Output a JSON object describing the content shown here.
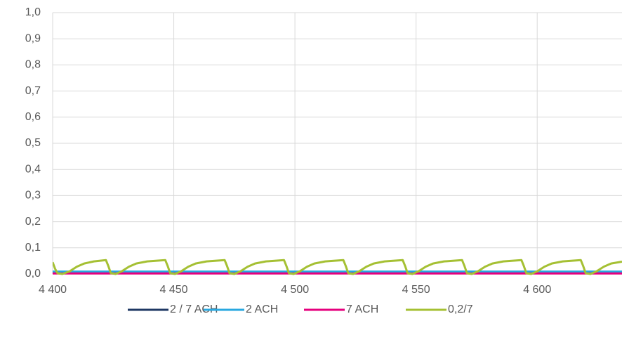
{
  "chart_data": {
    "type": "line",
    "x": [
      4400,
      4401,
      4402,
      4404,
      4407,
      4410,
      4413,
      4417,
      4422,
      4423,
      4424,
      4426,
      4428.5,
      4431.5,
      4434.5,
      4439,
      4446.5,
      4447.5,
      4448.5,
      4450.5,
      4453,
      4456,
      4459,
      4463.5,
      4471,
      4472,
      4473,
      4475,
      4477.5,
      4480.5,
      4483.5,
      4488,
      4495.5,
      4496.5,
      4497.5,
      4499.5,
      4502,
      4505,
      4508,
      4512.5,
      4520,
      4521,
      4522,
      4524,
      4526.5,
      4529.5,
      4532.5,
      4537,
      4544.5,
      4545.5,
      4546.5,
      4548.5,
      4551,
      4554,
      4557,
      4561.5,
      4569,
      4570,
      4571,
      4573,
      4575.5,
      4578.5,
      4581.5,
      4586,
      4593.5,
      4594.5,
      4595.5,
      4597.5,
      4600,
      4603,
      4606,
      4610.5,
      4618,
      4619,
      4620,
      4622,
      4624.5,
      4627.5,
      4630.5,
      4635
    ],
    "series": [
      {
        "name": "2 / 7 ACH",
        "color": "#1f3864",
        "values": [
          0.005,
          0.005,
          0.005,
          0.005,
          0.005,
          0.005,
          0.005,
          0.005,
          0.005,
          0.005,
          0.005,
          0.005,
          0.005,
          0.005,
          0.005,
          0.005,
          0.005,
          0.005,
          0.005,
          0.005,
          0.005,
          0.005,
          0.005,
          0.005,
          0.005,
          0.005,
          0.005,
          0.005,
          0.005,
          0.005,
          0.005,
          0.005,
          0.005,
          0.005,
          0.005,
          0.005,
          0.005,
          0.005,
          0.005,
          0.005,
          0.005,
          0.005,
          0.005,
          0.005,
          0.005,
          0.005,
          0.005,
          0.005,
          0.005,
          0.005,
          0.005,
          0.005,
          0.005,
          0.005,
          0.005,
          0.005,
          0.005,
          0.005,
          0.005,
          0.005,
          0.005,
          0.005,
          0.005,
          0.005,
          0.005,
          0.005,
          0.005,
          0.005,
          0.005,
          0.005,
          0.005,
          0.005,
          0.005,
          0.005,
          0.005,
          0.005,
          0.005,
          0.005,
          0.005,
          0.005
        ]
      },
      {
        "name": "2 ACH",
        "color": "#29a8e0",
        "values": [
          0.009,
          0.009,
          0.009,
          0.009,
          0.009,
          0.009,
          0.009,
          0.009,
          0.009,
          0.009,
          0.009,
          0.009,
          0.009,
          0.009,
          0.009,
          0.009,
          0.009,
          0.009,
          0.009,
          0.009,
          0.009,
          0.009,
          0.009,
          0.009,
          0.009,
          0.009,
          0.009,
          0.009,
          0.009,
          0.009,
          0.009,
          0.009,
          0.009,
          0.009,
          0.009,
          0.009,
          0.009,
          0.009,
          0.009,
          0.009,
          0.009,
          0.009,
          0.009,
          0.009,
          0.009,
          0.009,
          0.009,
          0.009,
          0.009,
          0.009,
          0.009,
          0.009,
          0.009,
          0.009,
          0.009,
          0.009,
          0.009,
          0.009,
          0.009,
          0.009,
          0.009,
          0.009,
          0.009,
          0.009,
          0.009,
          0.009,
          0.009,
          0.009,
          0.009,
          0.009,
          0.009,
          0.009,
          0.009,
          0.009,
          0.009,
          0.009,
          0.009,
          0.009,
          0.009,
          0.009
        ]
      },
      {
        "name": "7 ACH",
        "color": "#e6007e",
        "values": [
          0.002,
          0.002,
          0.002,
          0.002,
          0.002,
          0.002,
          0.002,
          0.002,
          0.002,
          0.002,
          0.002,
          0.002,
          0.002,
          0.002,
          0.002,
          0.002,
          0.002,
          0.002,
          0.002,
          0.002,
          0.002,
          0.002,
          0.002,
          0.002,
          0.002,
          0.002,
          0.002,
          0.002,
          0.002,
          0.002,
          0.002,
          0.002,
          0.002,
          0.002,
          0.002,
          0.002,
          0.002,
          0.002,
          0.002,
          0.002,
          0.002,
          0.002,
          0.002,
          0.002,
          0.002,
          0.002,
          0.002,
          0.002,
          0.002,
          0.002,
          0.002,
          0.002,
          0.002,
          0.002,
          0.002,
          0.002,
          0.002,
          0.002,
          0.002,
          0.002,
          0.002,
          0.002,
          0.002,
          0.002,
          0.002,
          0.002,
          0.002,
          0.002,
          0.002,
          0.002,
          0.002,
          0.002,
          0.002,
          0.002,
          0.002,
          0.002,
          0.002,
          0.002,
          0.002,
          0.002
        ]
      },
      {
        "name": "0,2/7",
        "color": "#a5c033",
        "values": [
          0.045,
          0.02,
          0.003,
          0,
          0.01,
          0.028,
          0.04,
          0.048,
          0.053,
          0.03,
          0.003,
          0,
          0.01,
          0.028,
          0.04,
          0.048,
          0.053,
          0.03,
          0.003,
          0,
          0.01,
          0.028,
          0.04,
          0.048,
          0.053,
          0.03,
          0.003,
          0,
          0.01,
          0.028,
          0.04,
          0.048,
          0.053,
          0.03,
          0.003,
          0,
          0.01,
          0.028,
          0.04,
          0.048,
          0.053,
          0.03,
          0.003,
          0,
          0.01,
          0.028,
          0.04,
          0.048,
          0.053,
          0.03,
          0.003,
          0,
          0.01,
          0.028,
          0.04,
          0.048,
          0.053,
          0.03,
          0.003,
          0,
          0.01,
          0.028,
          0.04,
          0.048,
          0.053,
          0.03,
          0.003,
          0,
          0.01,
          0.028,
          0.04,
          0.048,
          0.053,
          0.03,
          0.003,
          0,
          0.01,
          0.028,
          0.04,
          0.047
        ]
      }
    ],
    "xlim": [
      4400,
      4635
    ],
    "xticks": [
      {
        "value": 4400,
        "label": "4 400"
      },
      {
        "value": 4450,
        "label": "4 450"
      },
      {
        "value": 4500,
        "label": "4 500"
      },
      {
        "value": 4550,
        "label": "4 550"
      },
      {
        "value": 4600,
        "label": "4 600"
      }
    ],
    "ylim": [
      0,
      1
    ],
    "yticks": [
      {
        "value": 0,
        "label": "0,0"
      },
      {
        "value": 0.1,
        "label": "0,1"
      },
      {
        "value": 0.2,
        "label": "0,2"
      },
      {
        "value": 0.3,
        "label": "0,3"
      },
      {
        "value": 0.4,
        "label": "0,4"
      },
      {
        "value": 0.5,
        "label": "0,5"
      },
      {
        "value": 0.6,
        "label": "0,6"
      },
      {
        "value": 0.7,
        "label": "0,7"
      },
      {
        "value": 0.8,
        "label": "0,8"
      },
      {
        "value": 0.9,
        "label": "0,9"
      },
      {
        "value": 1,
        "label": "1,0"
      }
    ],
    "grid": true,
    "legend": "bottom"
  }
}
